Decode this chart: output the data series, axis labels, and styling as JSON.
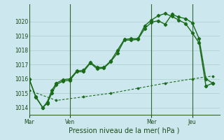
{
  "title": "Pression niveau de la mer( hPa )",
  "bg_color": "#cce8ee",
  "grid_color": "#aacccc",
  "line_color": "#1a6b1a",
  "ylim": [
    1013.5,
    1021.2
  ],
  "yticks": [
    1014,
    1015,
    1016,
    1017,
    1018,
    1019,
    1020
  ],
  "day_labels": [
    "Mar",
    "Ven",
    "Mer",
    "Jeu"
  ],
  "day_positions": [
    0,
    9,
    27,
    36
  ],
  "xlim": [
    0,
    42
  ],
  "series1_x": [
    0,
    1.5,
    3,
    4,
    5,
    6,
    7.5,
    9,
    10.5,
    12,
    13.5,
    15,
    16.5,
    18,
    19.5,
    21,
    22.5,
    24,
    25.5,
    27,
    28.5,
    30,
    31.5,
    33,
    34.5,
    36,
    37.5,
    39,
    40.5
  ],
  "series1_y": [
    1016.0,
    1014.7,
    1014.0,
    1014.3,
    1015.0,
    1015.6,
    1015.85,
    1015.9,
    1016.5,
    1016.5,
    1017.1,
    1016.7,
    1016.75,
    1017.2,
    1017.8,
    1018.7,
    1018.7,
    1018.75,
    1019.5,
    1019.95,
    1020.05,
    1019.8,
    1020.5,
    1020.3,
    1020.2,
    1019.9,
    1018.8,
    1016.0,
    1015.7
  ],
  "series2_x": [
    0,
    1.5,
    3,
    4,
    5,
    6,
    7.5,
    9,
    10.5,
    12,
    13.5,
    15,
    16.5,
    18,
    19.5,
    21,
    22.5,
    24,
    25.5,
    27,
    28.5,
    30,
    31.5,
    33,
    34.5,
    36,
    37.5,
    39,
    40.5
  ],
  "series2_y": [
    1016.0,
    1014.75,
    1014.0,
    1014.4,
    1015.2,
    1015.7,
    1015.95,
    1016.0,
    1016.55,
    1016.6,
    1017.15,
    1016.8,
    1016.8,
    1017.25,
    1018.0,
    1018.75,
    1018.8,
    1018.8,
    1019.7,
    1020.1,
    1020.4,
    1020.55,
    1020.35,
    1020.1,
    1019.85,
    1019.2,
    1018.5,
    1015.5,
    1015.7
  ],
  "series3_x": [
    0,
    6,
    12,
    18,
    24,
    30,
    36,
    40.5
  ],
  "series3_y": [
    1015.2,
    1014.5,
    1014.75,
    1015.0,
    1015.35,
    1015.7,
    1016.0,
    1016.2
  ]
}
